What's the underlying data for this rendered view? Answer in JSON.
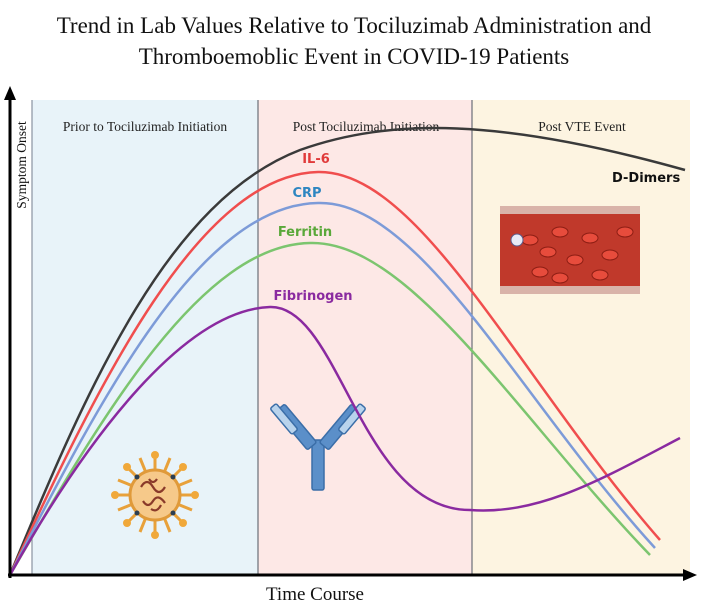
{
  "header": {
    "title": [
      "Trend in Lab Values Relative to Tociluzimab Administration and",
      "Thromboemoblic Event in COVID-19 Patients"
    ]
  },
  "axes": {
    "y_label": "Symptom Onset",
    "x_label": "Time Course"
  },
  "panels": [
    {
      "label": "Prior to Tociluzimab Initiation"
    },
    {
      "label": "Post Tociluzimab Initiation"
    },
    {
      "label": "Post VTE Event"
    }
  ],
  "curves": [
    {
      "label": "D-Dimers"
    },
    {
      "label": "IL-6"
    },
    {
      "label": "CRP"
    },
    {
      "label": "Ferritin"
    },
    {
      "label": "Fibrinogen"
    }
  ]
}
